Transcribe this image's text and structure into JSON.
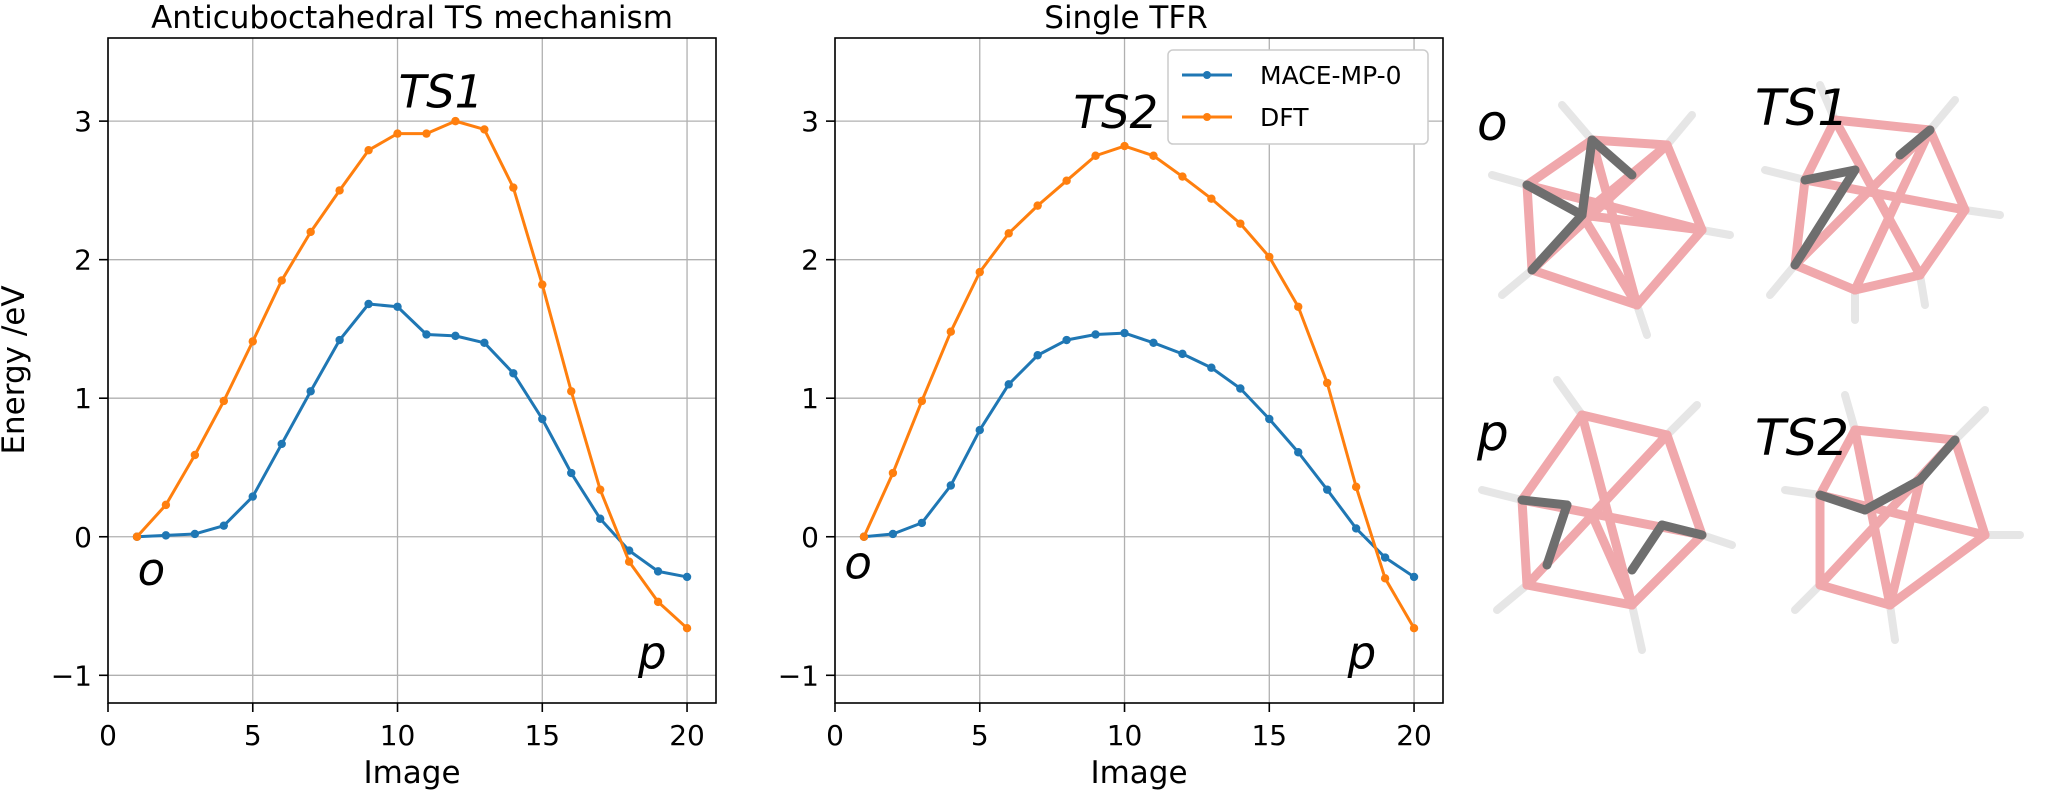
{
  "colors": {
    "mace": "#1f77b4",
    "dft": "#ff7f0e",
    "boron": "#f0a8ac",
    "carbon": "#6e6e6e",
    "hydrogen": "#e6e6e6"
  },
  "legend": {
    "entries": [
      "MACE-MP-0",
      "DFT"
    ]
  },
  "chart_data": [
    {
      "type": "line",
      "title": "Anticuboctahedral TS mechanism",
      "xlabel": "Image",
      "ylabel": "Energy /eV",
      "xlim": [
        0,
        21
      ],
      "ylim": [
        -1.2,
        3.6
      ],
      "xticks": [
        0,
        5,
        10,
        15,
        20
      ],
      "yticks": [
        -1,
        0,
        1,
        2,
        3
      ],
      "grid": true,
      "x": [
        1,
        2,
        3,
        4,
        5,
        6,
        7,
        8,
        9,
        10,
        11,
        12,
        13,
        14,
        15,
        16,
        17,
        18,
        19,
        20
      ],
      "series": [
        {
          "name": "MACE-MP-0",
          "values": [
            0.0,
            0.01,
            0.02,
            0.08,
            0.29,
            0.67,
            1.05,
            1.42,
            1.68,
            1.66,
            1.46,
            1.45,
            1.4,
            1.18,
            0.85,
            0.46,
            0.13,
            -0.1,
            -0.25,
            -0.29
          ]
        },
        {
          "name": "DFT",
          "values": [
            0.0,
            0.23,
            0.59,
            0.98,
            1.41,
            1.85,
            2.2,
            2.5,
            2.79,
            2.91,
            2.91,
            3.0,
            2.94,
            2.52,
            1.82,
            1.05,
            0.34,
            -0.18,
            -0.47,
            -0.66
          ]
        }
      ],
      "annotations": [
        {
          "text": "TS1",
          "x": 11.5,
          "y": 3.1
        },
        {
          "text": "o",
          "x": 1.5,
          "y": -0.35
        },
        {
          "text": "p",
          "x": 18.8,
          "y": -0.95
        }
      ]
    },
    {
      "type": "line",
      "title": "Single TFR",
      "xlabel": "Image",
      "ylabel": "",
      "xlim": [
        0,
        21
      ],
      "ylim": [
        -1.2,
        3.6
      ],
      "xticks": [
        0,
        5,
        10,
        15,
        20
      ],
      "yticks": [
        -1,
        0,
        1,
        2,
        3
      ],
      "grid": true,
      "legend_position": "top-right",
      "x": [
        1,
        2,
        3,
        4,
        5,
        6,
        7,
        8,
        9,
        10,
        11,
        12,
        13,
        14,
        15,
        16,
        17,
        18,
        19,
        20
      ],
      "series": [
        {
          "name": "MACE-MP-0",
          "values": [
            0.0,
            0.02,
            0.1,
            0.37,
            0.77,
            1.1,
            1.31,
            1.42,
            1.46,
            1.47,
            1.4,
            1.32,
            1.22,
            1.07,
            0.85,
            0.61,
            0.34,
            0.06,
            -0.15,
            -0.29
          ]
        },
        {
          "name": "DFT",
          "values": [
            0.0,
            0.46,
            0.98,
            1.48,
            1.91,
            2.19,
            2.39,
            2.57,
            2.75,
            2.82,
            2.75,
            2.6,
            2.44,
            2.26,
            2.02,
            1.66,
            1.11,
            0.36,
            -0.3,
            -0.66
          ]
        }
      ],
      "annotations": [
        {
          "text": "TS2",
          "x": 9.7,
          "y": 2.95
        },
        {
          "text": "o",
          "x": 0.8,
          "y": -0.3
        },
        {
          "text": "p",
          "x": 18.2,
          "y": -0.95
        }
      ]
    }
  ],
  "molecules": [
    {
      "label": "o"
    },
    {
      "label": "TS1"
    },
    {
      "label": "p"
    },
    {
      "label": "TS2"
    }
  ]
}
